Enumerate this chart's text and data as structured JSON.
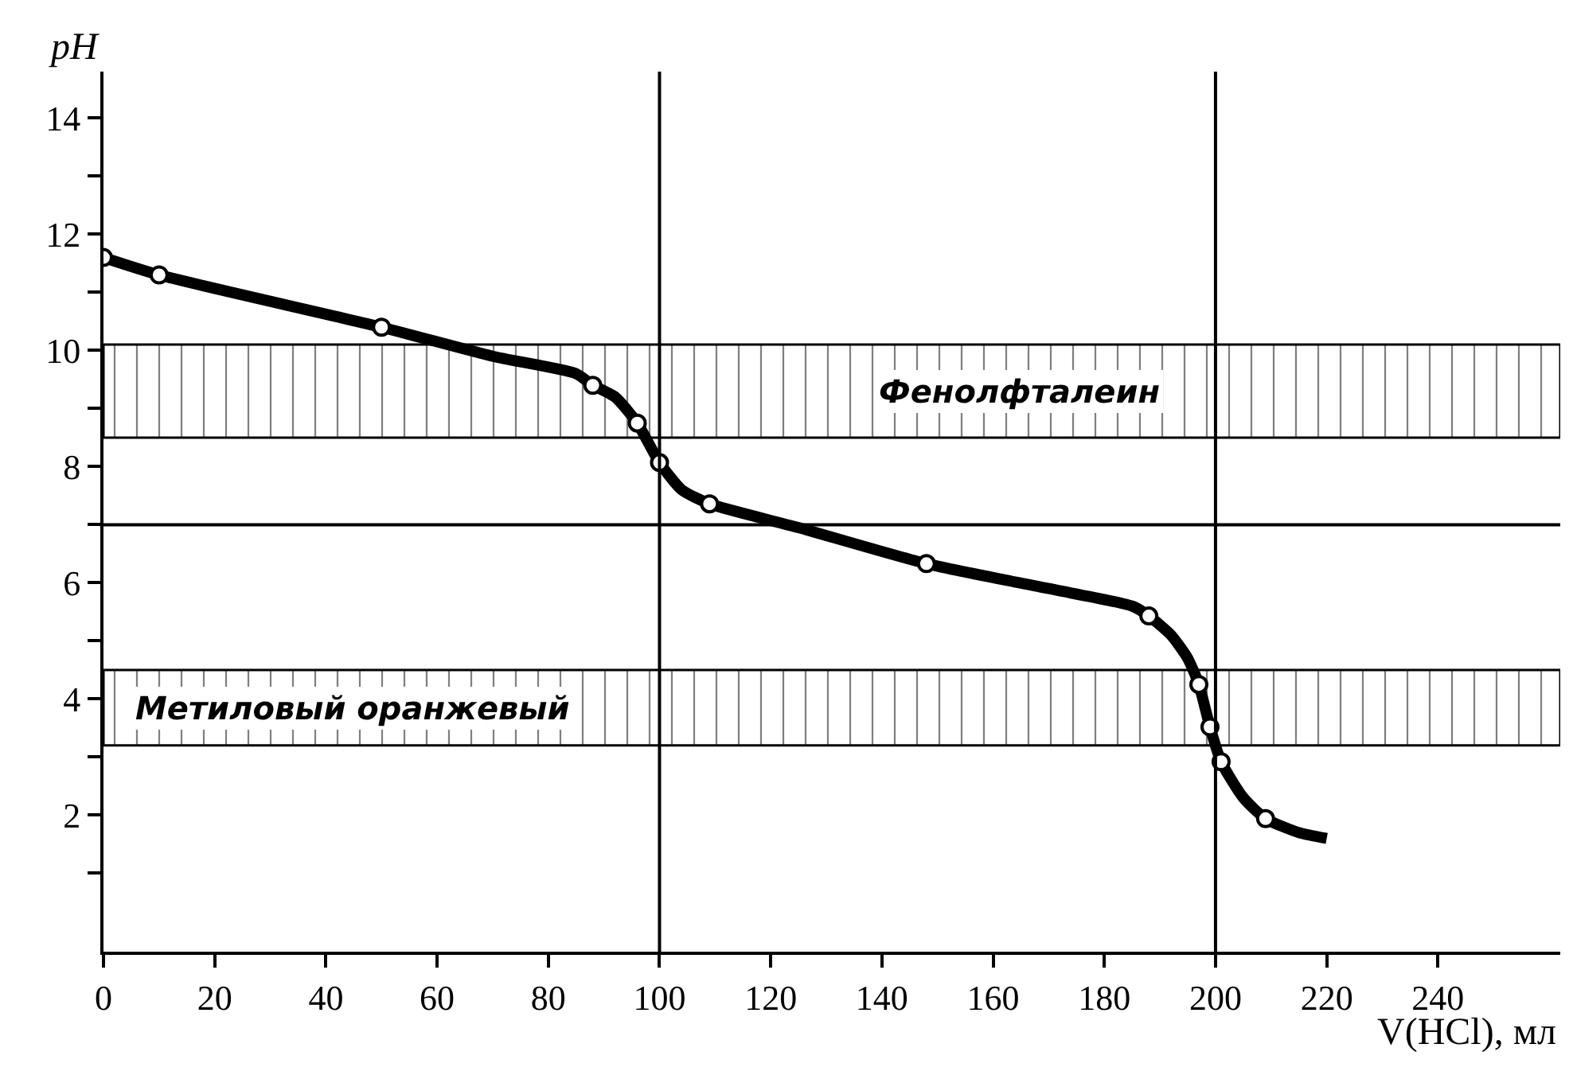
{
  "chart_data": {
    "type": "line",
    "xlabel": "V(HCl), мл",
    "ylabel": "pH",
    "xlim": [
      0,
      262
    ],
    "xticks": [
      0,
      20,
      40,
      60,
      80,
      100,
      120,
      140,
      160,
      180,
      200,
      220,
      240
    ],
    "ylim": [
      -0.35,
      14.8
    ],
    "yticks": [
      {
        "value": 1,
        "label": null
      },
      2,
      {
        "value": 3,
        "label": null
      },
      4,
      {
        "value": 5,
        "label": null
      },
      6,
      {
        "value": 7,
        "label": null
      },
      8,
      {
        "value": 9,
        "label": null
      },
      10,
      {
        "value": 11,
        "label": null
      },
      12,
      {
        "value": 13,
        "label": null
      },
      14
    ],
    "line_style": "solid",
    "series": [
      {
        "color": "#000000",
        "marker": "none",
        "x": [
          0,
          10,
          50,
          70,
          85,
          88,
          92,
          96,
          100,
          104,
          109,
          125,
          148,
          170,
          185,
          188,
          192,
          195,
          197,
          199,
          201,
          205,
          209,
          215,
          220
        ],
        "values": [
          11.6,
          11.3,
          10.4,
          9.9,
          9.6,
          9.4,
          9.2,
          8.75,
          8.07,
          7.6,
          7.36,
          6.95,
          6.33,
          5.9,
          5.6,
          5.43,
          5.1,
          4.7,
          4.25,
          3.52,
          2.92,
          2.3,
          1.94,
          1.7,
          1.6
        ]
      },
      {
        "type": "scatter",
        "color": "#000000",
        "marker": "circle",
        "x": [
          0,
          10,
          50,
          88,
          96,
          100,
          109,
          148,
          188,
          197,
          199,
          201,
          209
        ],
        "values": [
          11.6,
          11.3,
          10.4,
          9.4,
          8.75,
          8.07,
          7.36,
          6.33,
          5.43,
          4.25,
          3.52,
          2.92,
          1.94
        ]
      }
    ],
    "ref_lines": [
      {
        "axis": "x",
        "value": 100
      },
      {
        "axis": "x",
        "value": 200
      },
      {
        "axis": "y",
        "value": 7
      }
    ],
    "bands": [
      {
        "axis": "y",
        "from": 8.5,
        "to": 10.1,
        "label": "Фенолфталеин",
        "color": "#000000"
      },
      {
        "axis": "y",
        "from": 3.2,
        "to": 4.5,
        "label": "Метиловый оранжевый",
        "color": "#000000"
      }
    ]
  }
}
